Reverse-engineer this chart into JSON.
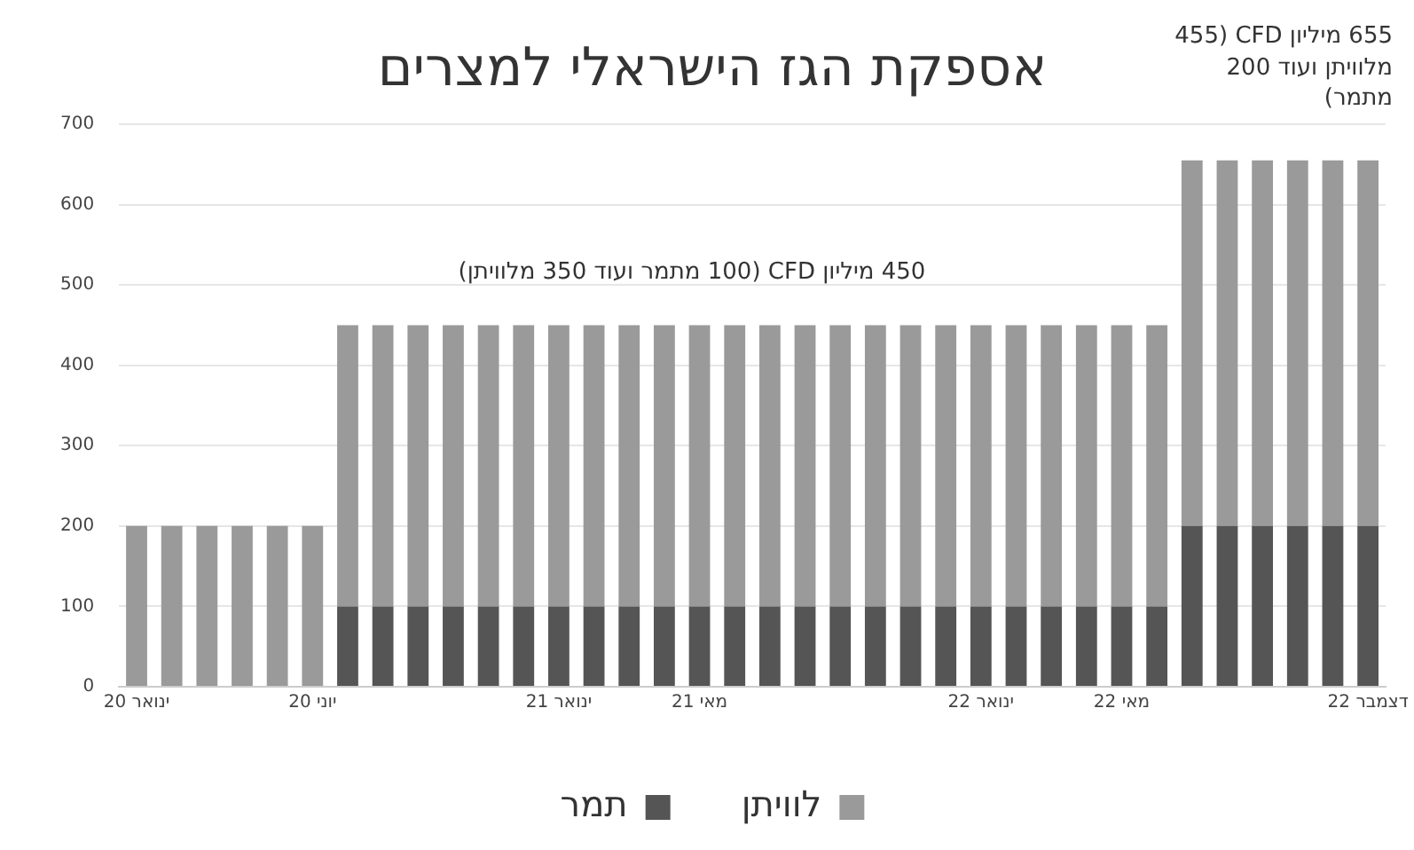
{
  "chart_data": {
    "type": "bar",
    "title": "אספקת הגז הישראלי למצרים",
    "categories": [
      "ינואר 20",
      null,
      null,
      null,
      null,
      "יוני 20",
      null,
      null,
      null,
      null,
      null,
      null,
      "ינואר 21",
      null,
      null,
      null,
      "מאי 21",
      null,
      null,
      null,
      null,
      null,
      null,
      null,
      "ינואר 22",
      null,
      null,
      null,
      "מאי 22",
      null,
      null,
      null,
      null,
      null,
      null,
      "דצמבר 22"
    ],
    "series": [
      {
        "name": "תמר",
        "color": "#555555",
        "values": [
          0,
          0,
          0,
          0,
          0,
          0,
          100,
          100,
          100,
          100,
          100,
          100,
          100,
          100,
          100,
          100,
          100,
          100,
          100,
          100,
          100,
          100,
          100,
          100,
          100,
          100,
          100,
          100,
          100,
          100,
          200,
          200,
          200,
          200,
          200,
          200
        ]
      },
      {
        "name": "לוויתן",
        "color": "#9a9a9a",
        "values": [
          200,
          200,
          200,
          200,
          200,
          200,
          350,
          350,
          350,
          350,
          350,
          350,
          350,
          350,
          350,
          350,
          350,
          350,
          350,
          350,
          350,
          350,
          350,
          350,
          350,
          350,
          350,
          350,
          350,
          350,
          455,
          455,
          455,
          455,
          455,
          455
        ]
      }
    ],
    "stacked": true,
    "ylim": [
      0,
      700
    ],
    "yticks": [
      0,
      100,
      200,
      300,
      400,
      500,
      600,
      700
    ],
    "grid": "y",
    "legend": "bottom",
    "annotations": [
      "450 מיליון CFD (100 מתמר ועוד 350 מלוויתן)",
      "655 מיליון CFD (455 מלוויתן ועוד 200 מתמר)"
    ]
  }
}
